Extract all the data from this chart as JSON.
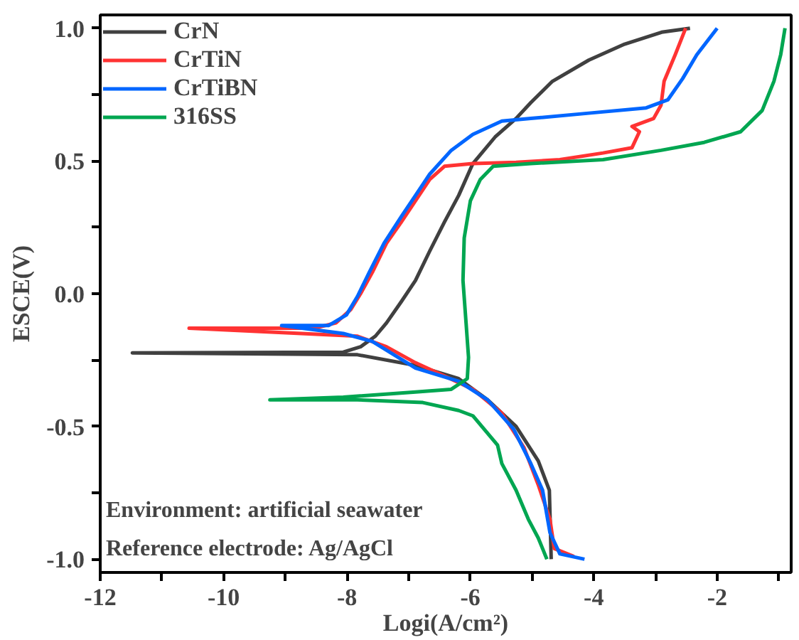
{
  "chart_data": {
    "type": "line",
    "xlabel": "Logi(A/cm²)",
    "ylabel": "ESCE(V)",
    "xlim": [
      -12,
      -0.8
    ],
    "ylim": [
      -1.05,
      1.05
    ],
    "xticks": [
      -12,
      {
        "value": -11,
        "label": null
      },
      -10,
      {
        "value": -9,
        "label": null
      },
      -8,
      {
        "value": -7,
        "label": null
      },
      -6,
      {
        "value": -5,
        "label": null
      },
      -4,
      {
        "value": -3,
        "label": null
      },
      -2,
      {
        "value": -1,
        "label": null
      }
    ],
    "yticks": [
      {
        "value": -1.0,
        "label": "-1.0"
      },
      {
        "value": -0.75,
        "label": null
      },
      -0.5,
      {
        "value": -0.25,
        "label": null
      },
      {
        "value": 0.0,
        "label": "0.0"
      },
      {
        "value": 0.25,
        "label": null
      },
      0.5,
      {
        "value": 0.75,
        "label": null
      },
      {
        "value": 1.0,
        "label": "1.0"
      }
    ],
    "grid": false,
    "legend": "top left",
    "marker": "none",
    "line_style": "solid",
    "annotations": [
      "Environment: artificial seawater",
      "Reference electrode: Ag/AgCl"
    ],
    "series": [
      {
        "name": "CrN",
        "color": "#404040",
        "x": [
          -4.69,
          -4.72,
          -4.9,
          -5.26,
          -5.72,
          -6.19,
          -6.89,
          -7.83,
          -11.48,
          -8.06,
          -7.78,
          -7.54,
          -7.36,
          -7.12,
          -6.89,
          -6.66,
          -6.42,
          -6.19,
          -5.96,
          -5.6,
          -5.26,
          -5.02,
          -4.67,
          -4.08,
          -3.5,
          -2.9,
          -2.44
        ],
        "values": [
          -1.0,
          -0.74,
          -0.63,
          -0.5,
          -0.4,
          -0.32,
          -0.27,
          -0.23,
          -0.223,
          -0.22,
          -0.2,
          -0.16,
          -0.11,
          -0.03,
          0.05,
          0.16,
          0.27,
          0.37,
          0.49,
          0.59,
          0.66,
          0.72,
          0.8,
          0.88,
          0.94,
          0.985,
          1.0
        ]
      },
      {
        "name": "CrTiN",
        "color": "#ff3333",
        "x": [
          -4.32,
          -4.64,
          -4.71,
          -4.9,
          -5.13,
          -5.49,
          -5.96,
          -6.42,
          -6.89,
          -7.36,
          -7.83,
          -10.56,
          -8.53,
          -8.18,
          -7.94,
          -7.78,
          -7.59,
          -7.36,
          -7.12,
          -6.89,
          -6.66,
          -6.42,
          -5.96,
          -5.26,
          -4.55,
          -3.85,
          -3.38,
          -3.26,
          -3.38,
          -3.03,
          -2.91,
          -2.86,
          -2.68,
          -2.51
        ],
        "values": [
          -0.99,
          -0.96,
          -0.85,
          -0.72,
          -0.58,
          -0.45,
          -0.36,
          -0.31,
          -0.26,
          -0.2,
          -0.16,
          -0.13,
          -0.13,
          -0.11,
          -0.06,
          0.0,
          0.08,
          0.19,
          0.27,
          0.35,
          0.43,
          0.48,
          0.49,
          0.495,
          0.505,
          0.53,
          0.55,
          0.61,
          0.63,
          0.66,
          0.71,
          0.8,
          0.9,
          1.0
        ]
      },
      {
        "name": "CrTiBN",
        "color": "#0066ff",
        "x": [
          -4.15,
          -4.55,
          -4.71,
          -4.83,
          -5.02,
          -5.3,
          -5.72,
          -6.19,
          -6.89,
          -7.59,
          -8.06,
          -9.06,
          -8.3,
          -8.01,
          -7.83,
          -7.64,
          -7.4,
          -7.12,
          -6.89,
          -6.66,
          -6.31,
          -5.96,
          -5.49,
          -5.02,
          -4.08,
          -3.15,
          -2.8,
          -2.56,
          -2.33,
          -2.0
        ],
        "values": [
          -1.0,
          -0.98,
          -0.9,
          -0.74,
          -0.64,
          -0.51,
          -0.4,
          -0.33,
          -0.28,
          -0.18,
          -0.15,
          -0.12,
          -0.12,
          -0.08,
          -0.01,
          0.08,
          0.19,
          0.29,
          0.37,
          0.45,
          0.54,
          0.6,
          0.65,
          0.66,
          0.68,
          0.7,
          0.73,
          0.81,
          0.9,
          1.0
        ]
      },
      {
        "name": "316SS",
        "color": "#00a651",
        "x": [
          -4.76,
          -4.9,
          -5.06,
          -5.26,
          -5.49,
          -5.56,
          -5.96,
          -6.19,
          -6.77,
          -7.83,
          -9.25,
          -8.06,
          -6.89,
          -6.31,
          -6.05,
          -6.03,
          -6.07,
          -6.12,
          -6.1,
          -6.0,
          -5.84,
          -5.63,
          -5.02,
          -3.85,
          -2.91,
          -2.21,
          -1.62,
          -1.27,
          -1.08,
          -0.97,
          -0.9
        ],
        "values": [
          -1.0,
          -0.92,
          -0.85,
          -0.74,
          -0.64,
          -0.57,
          -0.46,
          -0.44,
          -0.41,
          -0.4,
          -0.4,
          -0.39,
          -0.37,
          -0.36,
          -0.32,
          -0.24,
          -0.11,
          0.05,
          0.21,
          0.35,
          0.43,
          0.48,
          0.49,
          0.505,
          0.54,
          0.57,
          0.61,
          0.69,
          0.8,
          0.9,
          1.0
        ]
      }
    ]
  }
}
